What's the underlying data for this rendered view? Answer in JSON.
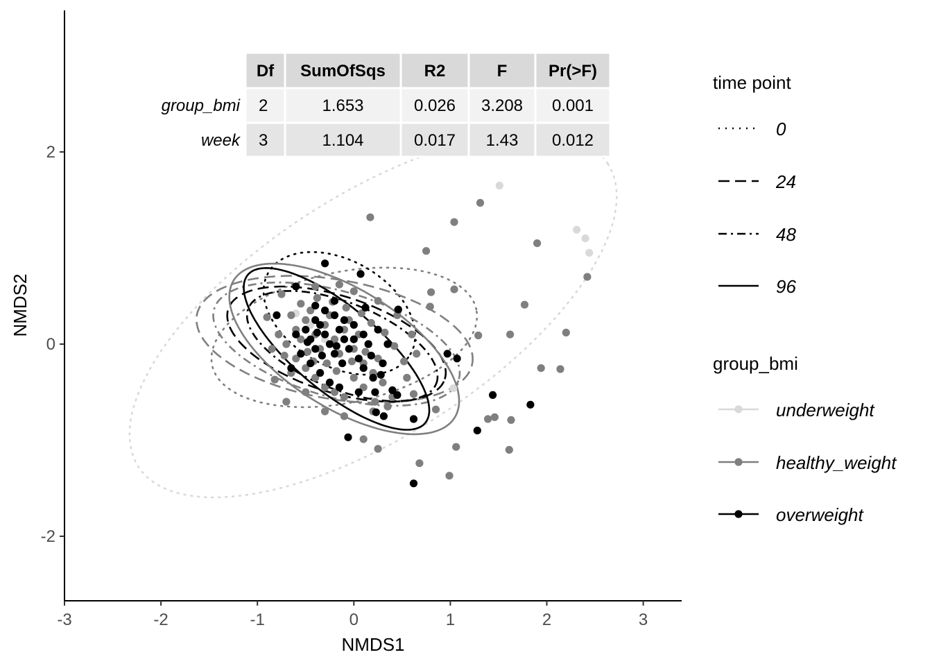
{
  "chart_data": {
    "type": "scatter",
    "title": "",
    "xlabel": "NMDS1",
    "ylabel": "NMDS2",
    "xlim": [
      -3.0,
      3.4
    ],
    "ylim": [
      -2.6,
      3.3
    ],
    "x_ticks": [
      -3,
      -2,
      -1,
      0,
      1,
      2,
      3
    ],
    "x_tick_labels": [
      "-3",
      "-2",
      "-1",
      "0",
      "1",
      "2",
      "3"
    ],
    "y_ticks": [
      -2,
      0,
      2
    ],
    "y_tick_labels": [
      "-2",
      "0",
      "2"
    ],
    "grid": false,
    "legend_placement": "right",
    "legends": [
      {
        "title": "time point",
        "entries": [
          {
            "label": "0",
            "linetype": "dotted"
          },
          {
            "label": "24",
            "linetype": "dashed"
          },
          {
            "label": "48",
            "linetype": "dotdash"
          },
          {
            "label": "96",
            "linetype": "solid"
          }
        ]
      },
      {
        "title": "group_bmi",
        "entries": [
          {
            "label": "underweight",
            "color": "#d9d9d9"
          },
          {
            "label": "healthy_weight",
            "color": "#7f7f7f"
          },
          {
            "label": "overweight",
            "color": "#000000"
          }
        ]
      }
    ],
    "table": {
      "headers": [
        "Df",
        "SumOfSqs",
        "R2",
        "F",
        "Pr(>F)"
      ],
      "rows": [
        {
          "name": "group_bmi",
          "cells": [
            "2",
            "1.653",
            "0.026",
            "3.208",
            "0.001"
          ]
        },
        {
          "name": "week",
          "cells": [
            "3",
            "1.104",
            "0.017",
            "1.43",
            "0.012"
          ]
        }
      ]
    },
    "series": [
      {
        "group": "underweight",
        "color": "#d9d9d9",
        "points": [
          [
            1.51,
            1.65
          ],
          [
            2.31,
            1.19
          ],
          [
            2.4,
            1.1
          ],
          [
            2.44,
            0.95
          ],
          [
            1.03,
            -0.46
          ],
          [
            -0.6,
            0.32
          ],
          [
            -0.45,
            0.2
          ],
          [
            -0.3,
            0.05
          ]
        ]
      },
      {
        "group": "healthy_weight",
        "color": "#7f7f7f",
        "points": [
          [
            0.17,
            1.32
          ],
          [
            1.31,
            1.47
          ],
          [
            1.04,
            1.27
          ],
          [
            0.75,
            0.97
          ],
          [
            1.9,
            1.05
          ],
          [
            0.8,
            0.54
          ],
          [
            1.04,
            0.57
          ],
          [
            0.79,
            0.39
          ],
          [
            1.77,
            0.41
          ],
          [
            1.62,
            0.1
          ],
          [
            1.29,
            0.09
          ],
          [
            2.2,
            0.12
          ],
          [
            1.94,
            -0.25
          ],
          [
            2.14,
            -0.26
          ],
          [
            2.42,
            0.7
          ],
          [
            0.85,
            -0.68
          ],
          [
            1.39,
            -0.78
          ],
          [
            1.46,
            -0.76
          ],
          [
            1.63,
            -0.79
          ],
          [
            1.06,
            -1.07
          ],
          [
            0.68,
            -1.24
          ],
          [
            0.99,
            -1.37
          ],
          [
            1.61,
            -1.1
          ],
          [
            0.25,
            -1.09
          ],
          [
            0.1,
            -0.99
          ],
          [
            -0.82,
            -0.37
          ],
          [
            -0.7,
            -0.6
          ],
          [
            -0.9,
            0.28
          ],
          [
            -0.75,
            0.52
          ],
          [
            -0.4,
            0.6
          ],
          [
            -0.15,
            0.62
          ],
          [
            0.0,
            0.55
          ],
          [
            0.25,
            0.45
          ],
          [
            0.45,
            0.3
          ],
          [
            0.6,
            0.1
          ],
          [
            0.65,
            -0.1
          ],
          [
            0.55,
            -0.35
          ],
          [
            0.4,
            -0.55
          ],
          [
            0.2,
            -0.7
          ],
          [
            -0.1,
            -0.75
          ],
          [
            -0.3,
            -0.7
          ],
          [
            -0.5,
            -0.5
          ],
          [
            -0.65,
            -0.3
          ],
          [
            -0.7,
            0.0
          ],
          [
            -0.6,
            0.15
          ],
          [
            -0.55,
            0.05
          ],
          [
            -0.5,
            0.25
          ],
          [
            -0.45,
            0.35
          ],
          [
            -0.4,
            0.1
          ],
          [
            -0.35,
            -0.05
          ],
          [
            -0.3,
            0.2
          ],
          [
            -0.25,
            0.3
          ],
          [
            -0.2,
            0.05
          ],
          [
            -0.15,
            -0.1
          ],
          [
            -0.1,
            0.15
          ],
          [
            -0.05,
            0.25
          ],
          [
            0.0,
            -0.05
          ],
          [
            0.05,
            0.1
          ],
          [
            0.1,
            -0.2
          ],
          [
            0.15,
            0.0
          ],
          [
            0.2,
            -0.3
          ],
          [
            0.25,
            -0.15
          ],
          [
            0.3,
            -0.4
          ],
          [
            -0.6,
            -0.15
          ],
          [
            -0.5,
            -0.25
          ],
          [
            -0.4,
            -0.35
          ],
          [
            -0.3,
            -0.45
          ],
          [
            -0.2,
            -0.5
          ],
          [
            -0.1,
            -0.55
          ],
          [
            0.0,
            -0.35
          ],
          [
            0.1,
            -0.45
          ],
          [
            -0.55,
            0.42
          ],
          [
            -0.38,
            0.48
          ],
          [
            -0.22,
            0.44
          ],
          [
            -0.08,
            0.38
          ],
          [
            0.08,
            0.32
          ],
          [
            0.18,
            0.22
          ],
          [
            0.32,
            0.12
          ],
          [
            0.42,
            -0.02
          ],
          [
            0.52,
            -0.18
          ],
          [
            0.62,
            -0.52
          ],
          [
            -0.78,
            0.1
          ],
          [
            -0.72,
            -0.12
          ],
          [
            -0.65,
            0.3
          ],
          [
            -0.48,
            -0.08
          ],
          [
            -0.42,
            -0.18
          ],
          [
            -0.28,
            -0.2
          ],
          [
            -0.18,
            -0.28
          ],
          [
            -0.02,
            -0.18
          ],
          [
            0.12,
            -0.08
          ],
          [
            0.22,
            -0.6
          ],
          [
            0.35,
            -0.65
          ],
          [
            -0.85,
            -0.05
          ]
        ]
      },
      {
        "group": "overweight",
        "color": "#000000",
        "points": [
          [
            -0.3,
            0.84
          ],
          [
            0.07,
            0.73
          ],
          [
            0.46,
            0.36
          ],
          [
            0.97,
            -0.1
          ],
          [
            1.07,
            -0.15
          ],
          [
            1.44,
            -0.53
          ],
          [
            1.83,
            -0.63
          ],
          [
            1.28,
            -0.9
          ],
          [
            0.62,
            -1.45
          ],
          [
            -0.06,
            -0.97
          ],
          [
            0.62,
            -0.78
          ],
          [
            0.45,
            -0.53
          ],
          [
            0.23,
            -0.71
          ],
          [
            0.31,
            -0.75
          ],
          [
            -0.8,
            0.3
          ],
          [
            -0.6,
            0.6
          ],
          [
            -0.4,
            0.4
          ],
          [
            -0.2,
            0.3
          ],
          [
            0.0,
            0.2
          ],
          [
            0.15,
            0.0
          ],
          [
            0.3,
            -0.2
          ],
          [
            -0.5,
            0.15
          ],
          [
            -0.45,
            0.05
          ],
          [
            -0.4,
            -0.05
          ],
          [
            -0.35,
            0.2
          ],
          [
            -0.3,
            0.1
          ],
          [
            -0.25,
            0.0
          ],
          [
            -0.2,
            -0.1
          ],
          [
            -0.15,
            0.15
          ],
          [
            -0.1,
            0.05
          ],
          [
            -0.05,
            -0.05
          ],
          [
            0.05,
            -0.15
          ],
          [
            0.1,
            -0.25
          ],
          [
            0.2,
            -0.35
          ],
          [
            -0.55,
            -0.1
          ],
          [
            -0.45,
            -0.2
          ],
          [
            -0.35,
            -0.3
          ],
          [
            -0.25,
            -0.4
          ],
          [
            -0.15,
            -0.45
          ],
          [
            0.05,
            -0.5
          ],
          [
            -0.6,
            0.1
          ],
          [
            -0.3,
            0.35
          ],
          [
            -0.1,
            0.25
          ],
          [
            0.1,
            0.1
          ],
          [
            0.25,
            0.15
          ],
          [
            0.35,
            0.0
          ],
          [
            -0.65,
            -0.25
          ],
          [
            -0.4,
            0.25
          ],
          [
            -0.2,
            0.45
          ],
          [
            0.12,
            0.38
          ],
          [
            0.22,
            -0.5
          ],
          [
            -0.48,
            0.02
          ],
          [
            -0.33,
            -0.12
          ],
          [
            -0.18,
            -0.02
          ],
          [
            0.0,
            0.05
          ],
          [
            -0.38,
            0.12
          ],
          [
            -0.12,
            -0.2
          ],
          [
            0.18,
            -0.12
          ],
          [
            0.28,
            -0.32
          ],
          [
            0.4,
            -0.48
          ]
        ]
      }
    ],
    "ellipses": [
      {
        "group": "underweight",
        "time_point": "0",
        "color": "#d9d9d9",
        "linetype": "dotted",
        "cx": 0.2,
        "cy": 0.3,
        "a": 2.9,
        "b": 1.25,
        "angle_deg": 33
      },
      {
        "group": "healthy_weight",
        "time_point": "0",
        "color": "#7f7f7f",
        "linetype": "dotted",
        "cx": -0.1,
        "cy": 0.07,
        "a": 1.4,
        "b": 0.68,
        "angle_deg": 12
      },
      {
        "group": "overweight",
        "time_point": "0",
        "color": "#000000",
        "linetype": "dotted",
        "cx": -0.15,
        "cy": 0.32,
        "a": 0.85,
        "b": 0.55,
        "angle_deg": -30
      },
      {
        "group": "healthy_weight",
        "time_point": "24",
        "color": "#7f7f7f",
        "linetype": "dashed",
        "cx": -0.2,
        "cy": 0.05,
        "a": 1.45,
        "b": 0.62,
        "angle_deg": -10
      },
      {
        "group": "overweight",
        "time_point": "24",
        "color": "#000000",
        "linetype": "dashed",
        "cx": -0.18,
        "cy": 0.0,
        "a": 1.18,
        "b": 0.5,
        "angle_deg": -18
      },
      {
        "group": "healthy_weight",
        "time_point": "48",
        "color": "#7f7f7f",
        "linetype": "dotdash",
        "cx": -0.18,
        "cy": 0.0,
        "a": 1.32,
        "b": 0.55,
        "angle_deg": -16
      },
      {
        "group": "overweight",
        "time_point": "48",
        "color": "#000000",
        "linetype": "dotdash",
        "cx": -0.12,
        "cy": -0.02,
        "a": 1.05,
        "b": 0.45,
        "angle_deg": -22
      },
      {
        "group": "healthy_weight",
        "time_point": "96",
        "color": "#7f7f7f",
        "linetype": "solid",
        "cx": -0.1,
        "cy": -0.05,
        "a": 1.35,
        "b": 0.62,
        "angle_deg": -32
      },
      {
        "group": "overweight",
        "time_point": "96",
        "color": "#000000",
        "linetype": "solid",
        "cx": -0.18,
        "cy": -0.05,
        "a": 1.2,
        "b": 0.44,
        "angle_deg": -40
      }
    ]
  }
}
